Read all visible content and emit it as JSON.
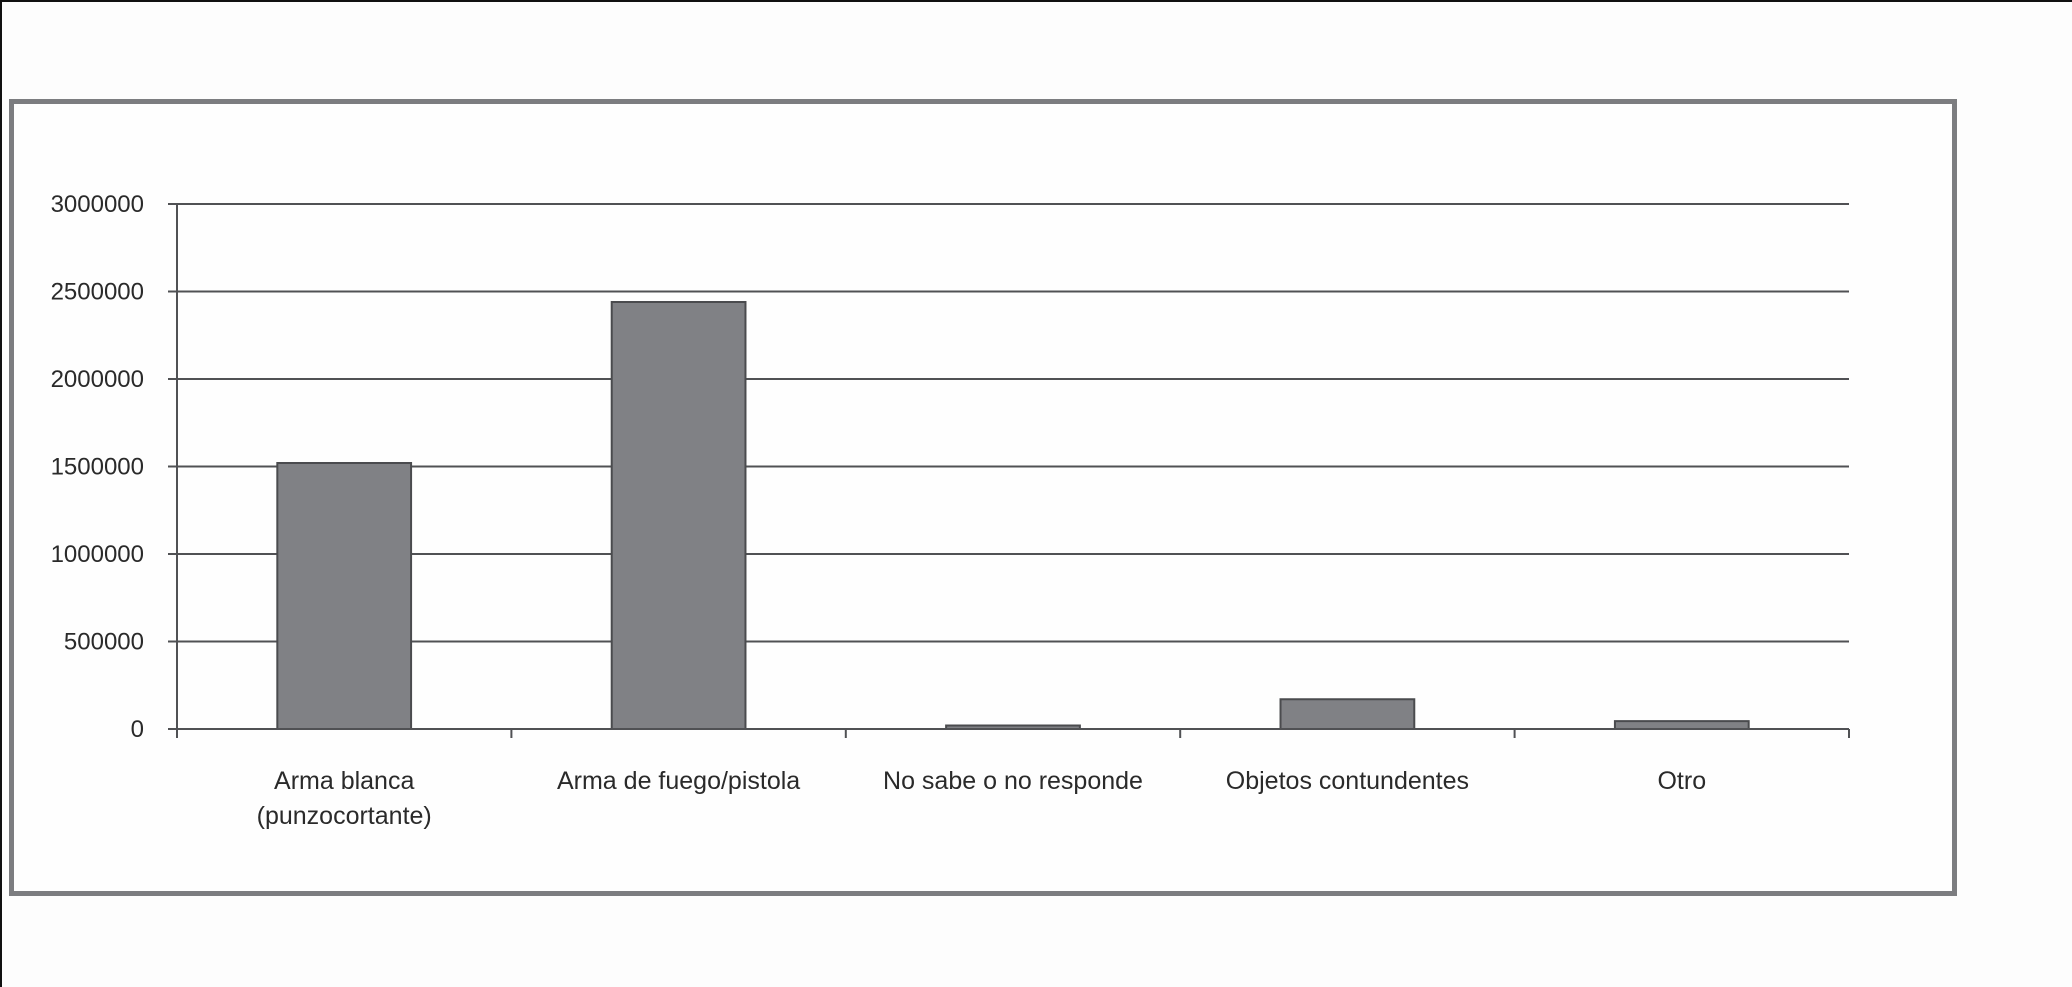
{
  "chart_data": {
    "type": "bar",
    "title": "",
    "xlabel": "",
    "ylabel": "",
    "categories": [
      [
        "Arma blanca",
        "(punzocortante)"
      ],
      [
        "Arma de fuego/pistola"
      ],
      [
        "No sabe o no responde"
      ],
      [
        "Objetos contundentes"
      ],
      [
        "Otro"
      ]
    ],
    "category_names": [
      "Arma blanca (punzocortante)",
      "Arma de fuego/pistola",
      "No sabe o no responde",
      "Objetos contundentes",
      "Otro"
    ],
    "values": [
      1520000,
      2440000,
      20000,
      170000,
      45000
    ],
    "ylim": [
      0,
      3000000
    ],
    "yticks": [
      0,
      500000,
      1000000,
      1500000,
      2000000,
      2500000,
      3000000
    ],
    "ytick_labels": [
      "0",
      "500000",
      "1000000",
      "1500000",
      "2000000",
      "2500000",
      "3000000"
    ],
    "grid": true,
    "legend": null,
    "colors": {
      "bar_fill": "#808185",
      "bar_stroke": "#4a4b4e",
      "grid": "#505154",
      "axis": "#505154",
      "frame": "#7c7d80"
    }
  }
}
